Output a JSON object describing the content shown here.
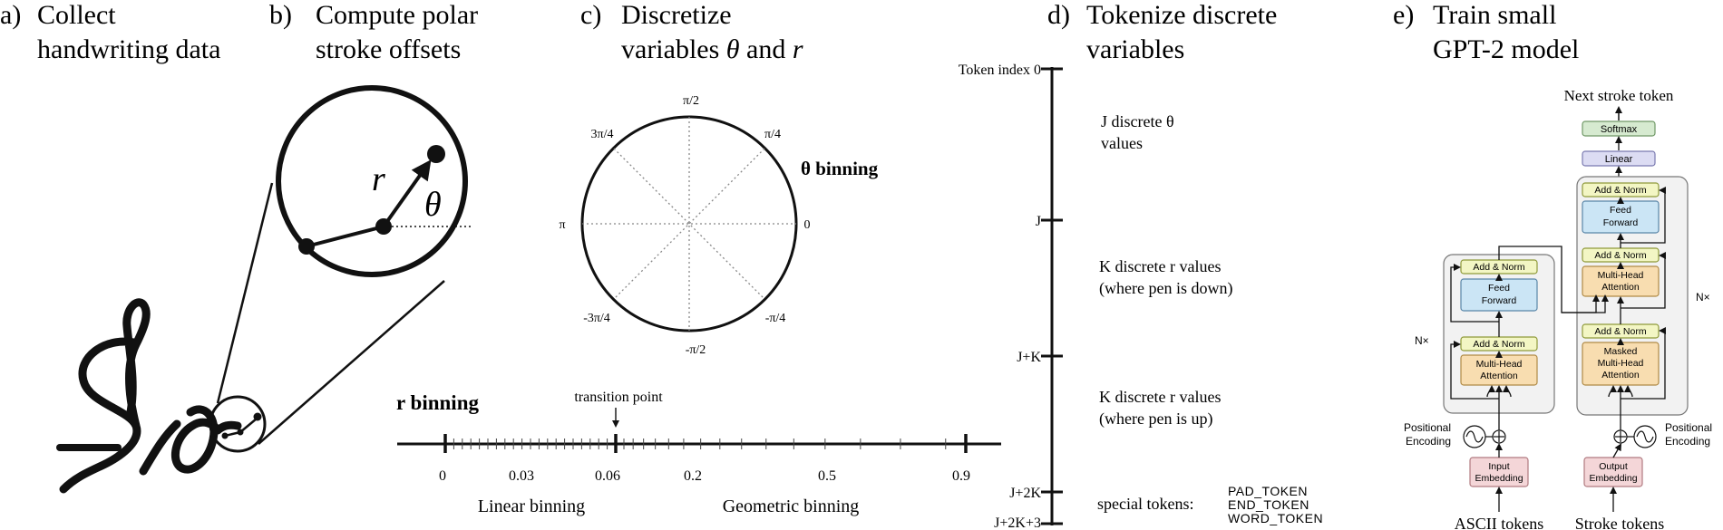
{
  "panels": {
    "a": {
      "label": "a)",
      "title_lines": [
        "Collect",
        "handwriting data"
      ]
    },
    "b": {
      "label": "b)",
      "title_lines": [
        "Compute polar",
        "stroke offsets"
      ],
      "r_symbol": "r",
      "theta_symbol": "θ"
    },
    "c": {
      "label": "c)",
      "title_line1": "Discretize",
      "title_line2_pre": "variables ",
      "title_theta": "θ",
      "title_and": " and ",
      "title_r": "r",
      "theta_binning_label": "θ binning",
      "angle_labels": {
        "pi_2": "π/2",
        "pi_4": "π/4",
        "three_pi_4": "3π/4",
        "pi": "π",
        "zero": "0",
        "neg_pi_4": "-π/4",
        "neg_three_pi_4": "-3π/4",
        "neg_pi_2": "-π/2"
      },
      "r_binning_label": "r binning",
      "transition_label": "transition point",
      "tick_labels": [
        "0",
        "0.03",
        "0.06",
        "0.2",
        "0.5",
        "0.9"
      ],
      "linear_label": "Linear binning",
      "geometric_label": "Geometric binning"
    },
    "d": {
      "label": "d)",
      "title_lines": [
        "Tokenize discrete",
        "variables"
      ],
      "axis_labels": [
        "Token index 0",
        "J",
        "J+K",
        "J+2K",
        "J+2K+3"
      ],
      "group_j": [
        "J discrete θ",
        "values"
      ],
      "group_k_down": [
        "K discrete r values",
        "(where pen is down)"
      ],
      "group_k_up": [
        "K discrete r values",
        "(where pen is up)"
      ],
      "special_label": "special tokens:",
      "special_tokens": [
        "PAD_TOKEN",
        "END_TOKEN",
        "WORD_TOKEN"
      ]
    },
    "e": {
      "label": "e)",
      "title_lines": [
        "Train small",
        "GPT-2 model"
      ],
      "next_token_label": "Next stroke token",
      "softmax": "Softmax",
      "linear": "Linear",
      "add_norm": "Add & Norm",
      "feed_forward": [
        "Feed",
        "Forward"
      ],
      "multi_head": [
        "Multi-Head",
        "Attention"
      ],
      "masked_multi_head": [
        "Masked",
        "Multi-Head",
        "Attention"
      ],
      "input_embedding": [
        "Input",
        "Embedding"
      ],
      "output_embedding": [
        "Output",
        "Embedding"
      ],
      "nx": "N×",
      "positional_encoding": [
        "Positional",
        "Encoding"
      ],
      "ascii_tokens": "ASCII tokens",
      "stroke_tokens": "Stroke tokens"
    }
  },
  "colors": {
    "add_norm_fill": "#f3f6c4",
    "add_norm_stroke": "#8f9a3a",
    "feed_forward_fill": "#cbe5f5",
    "feed_forward_stroke": "#5a86a8",
    "attention_fill": "#f8ddb0",
    "attention_stroke": "#b08a45",
    "embedding_fill": "#f4d6d8",
    "embedding_stroke": "#b07a80",
    "softmax_fill": "#d6ead0",
    "softmax_stroke": "#6f9866",
    "linear_fill": "#dcdcf3",
    "linear_stroke": "#7a7ab0",
    "block_fill": "#f2f2f2",
    "block_stroke": "#777777"
  }
}
